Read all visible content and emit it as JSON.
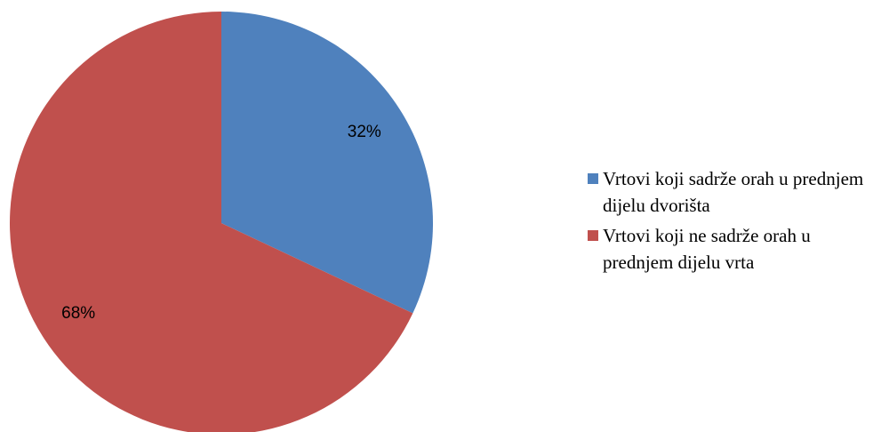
{
  "chart_data": {
    "type": "pie",
    "slices": [
      {
        "label": "Vrtovi koji sadrže orah u prednjem dijelu dvorišta",
        "value": 32,
        "display": "32%",
        "color": "#4f81bd"
      },
      {
        "label": "Vrtovi koji ne sadrže orah u prednjem dijelu vrta",
        "value": 68,
        "display": "68%",
        "color": "#c0504d"
      }
    ],
    "legend_position": "right"
  }
}
